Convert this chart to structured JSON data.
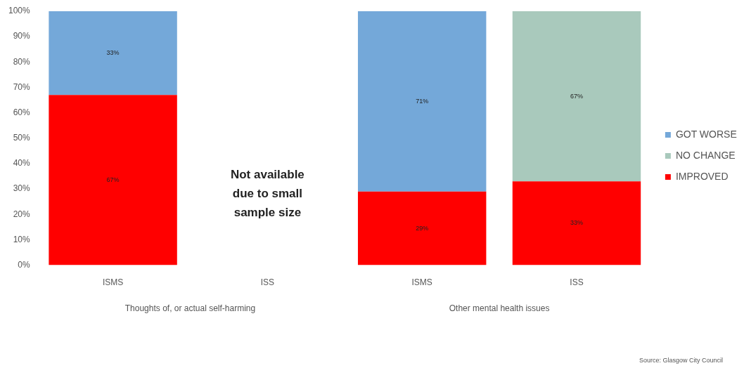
{
  "chart_data": {
    "type": "bar",
    "stacked": true,
    "categories": [
      "ISMS",
      "ISS",
      "ISMS",
      "ISS"
    ],
    "series": [
      {
        "name": "IMPROVED",
        "color": "#ff0000",
        "values": [
          67,
          null,
          29,
          33
        ],
        "value_labels": [
          "67%",
          null,
          "29%",
          "33%"
        ]
      },
      {
        "name": "NO CHANGE",
        "color": "#a9c9bc",
        "values": [
          null,
          null,
          null,
          67
        ],
        "value_labels": [
          null,
          null,
          null,
          "67%"
        ]
      },
      {
        "name": "GOT WORSE",
        "color": "#74a8d9",
        "values": [
          33,
          null,
          71,
          null
        ],
        "value_labels": [
          "33%",
          null,
          "71%",
          null
        ]
      }
    ],
    "ylim": [
      0,
      100
    ],
    "yticks": [
      {
        "value": 0,
        "label": "0%"
      },
      {
        "value": 10,
        "label": "10%"
      },
      {
        "value": 20,
        "label": "20%"
      },
      {
        "value": 30,
        "label": "30%"
      },
      {
        "value": 40,
        "label": "40%"
      },
      {
        "value": 50,
        "label": "50%"
      },
      {
        "value": 60,
        "label": "60%"
      },
      {
        "value": 70,
        "label": "70%"
      },
      {
        "value": 80,
        "label": "80%"
      },
      {
        "value": 90,
        "label": "90%"
      },
      {
        "value": 100,
        "label": "100%"
      }
    ],
    "grid": false,
    "legend": "right",
    "annotations": [
      "Not available due to small sample size",
      "Thoughts of, or actual self-harming",
      "Other mental health issues",
      "Source: Glasgow City Council"
    ]
  }
}
